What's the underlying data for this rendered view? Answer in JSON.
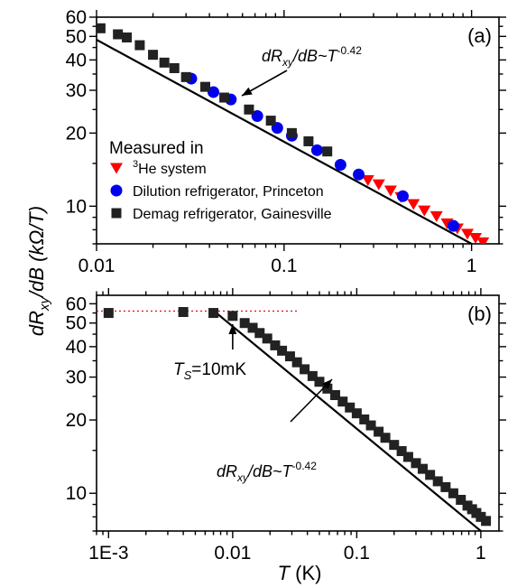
{
  "figure": {
    "ylabel_main": "dR",
    "ylabel_sub": "xy",
    "ylabel_rest": "/dB (kΩ/T)",
    "xlabel_italic": "T",
    "xlabel_rest": " (K)"
  },
  "chart_data": [
    {
      "type": "scatter",
      "panel_label": "(a)",
      "x_scale": "log",
      "y_scale": "log",
      "xlim": [
        0.01,
        1.4
      ],
      "ylim": [
        7,
        60
      ],
      "x_tick_labels": [
        "0.01",
        "0.1",
        "1"
      ],
      "y_tick_labels": [
        "10",
        "20",
        "30",
        "40",
        "50",
        "60"
      ],
      "fit_label": {
        "pre": "dR",
        "sub": "xy",
        "mid": "/dB~T",
        "sup": "-0.42"
      },
      "fit": {
        "exponent": -0.42,
        "coefficient": 7.0,
        "x_range": [
          0.0095,
          1.4
        ]
      },
      "legend": {
        "title": "Measured in",
        "entries": [
          {
            "sup": "3",
            "text": "He system",
            "color": "#ff0000",
            "marker": "triangle-down"
          },
          {
            "sup": "",
            "text": "Dilution refrigerator, Princeton",
            "color": "#0000ee",
            "marker": "circle"
          },
          {
            "sup": "",
            "text": "Demag refrigerator, Gainesville",
            "color": "#222222",
            "marker": "square"
          }
        ]
      },
      "series": [
        {
          "name": "3He system",
          "marker": "triangle-down",
          "color": "#ff0000",
          "x": [
            0.28,
            0.32,
            0.37,
            0.42,
            0.49,
            0.56,
            0.65,
            0.74,
            0.84,
            0.95,
            1.05,
            1.15
          ],
          "y": [
            12.8,
            12.3,
            11.6,
            10.9,
            10.2,
            9.6,
            9.1,
            8.5,
            8.1,
            7.7,
            7.4,
            7.1
          ]
        },
        {
          "name": "Dilution refrigerator, Princeton",
          "marker": "circle",
          "color": "#0000ee",
          "x": [
            0.032,
            0.042,
            0.052,
            0.072,
            0.092,
            0.11,
            0.15,
            0.2,
            0.25,
            0.43,
            0.8
          ],
          "y": [
            33.5,
            29.5,
            27.5,
            23.5,
            21.0,
            19.5,
            17.0,
            14.8,
            13.5,
            11.0,
            8.3
          ]
        },
        {
          "name": "Demag refrigerator, Gainesville",
          "marker": "square",
          "color": "#222222",
          "x": [
            0.0105,
            0.013,
            0.0145,
            0.017,
            0.02,
            0.023,
            0.026,
            0.03,
            0.038,
            0.048,
            0.065,
            0.085,
            0.11,
            0.135,
            0.17
          ],
          "y": [
            54.0,
            51.0,
            49.5,
            46.0,
            42.0,
            39.0,
            37.0,
            34.0,
            31.0,
            28.0,
            25.0,
            22.5,
            20.0,
            18.5,
            16.8
          ]
        }
      ]
    },
    {
      "type": "scatter",
      "panel_label": "(b)",
      "x_scale": "log",
      "y_scale": "log",
      "xlim": [
        0.0008,
        1.4
      ],
      "ylim": [
        7,
        65
      ],
      "x_tick_labels": [
        "1E-3",
        "0.01",
        "0.1",
        "1"
      ],
      "y_tick_labels": [
        "10",
        "20",
        "30",
        "40",
        "50",
        "60"
      ],
      "saturation_value": 56,
      "saturation_annotation": {
        "italic": "T",
        "sub": "S",
        "rest": "=10mK"
      },
      "fit_label": {
        "pre": "dR",
        "sub": "xy",
        "mid": "/dB~T",
        "sup": "-0.42"
      },
      "fit": {
        "exponent": -0.42,
        "coefficient": 7.0,
        "x_range": [
          0.0068,
          1.4
        ]
      },
      "series": [
        {
          "name": "",
          "marker": "square",
          "color": "#222222",
          "x": [
            0.001,
            0.004,
            0.007,
            0.01,
            0.0125,
            0.0145,
            0.0165,
            0.019,
            0.022,
            0.025,
            0.029,
            0.033,
            0.038,
            0.044,
            0.05,
            0.058,
            0.067,
            0.077,
            0.088,
            0.1,
            0.115,
            0.13,
            0.15,
            0.17,
            0.2,
            0.23,
            0.26,
            0.3,
            0.34,
            0.39,
            0.45,
            0.52,
            0.6,
            0.69,
            0.78,
            0.85,
            0.92,
            1.0,
            1.1
          ],
          "y": [
            55,
            55.5,
            55,
            53.5,
            50,
            47.8,
            45.5,
            43.2,
            40.5,
            38.5,
            36.5,
            34.5,
            32.3,
            30.3,
            28.7,
            26.9,
            25.3,
            23.8,
            22.5,
            21.3,
            20.1,
            19.0,
            17.9,
            16.9,
            15.8,
            14.9,
            14.1,
            13.3,
            12.6,
            11.9,
            11.2,
            10.6,
            10.0,
            9.4,
            8.9,
            8.6,
            8.3,
            8.0,
            7.7
          ]
        }
      ]
    }
  ]
}
